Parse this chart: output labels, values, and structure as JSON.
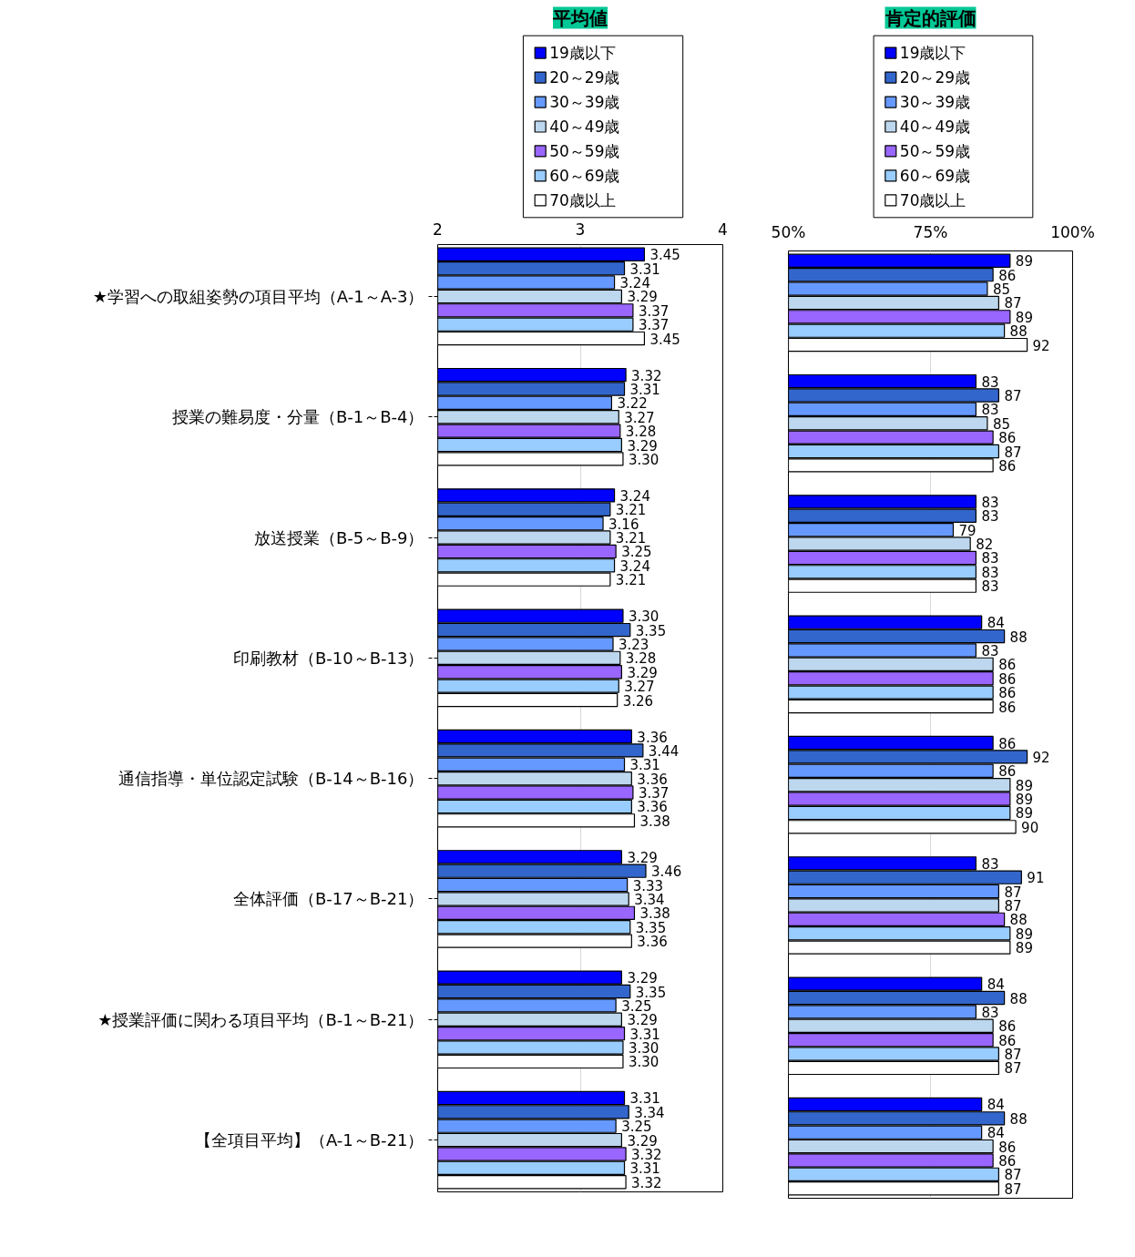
{
  "chart_data": [
    {
      "type": "bar",
      "orientation": "horizontal",
      "title": "平均値",
      "legend": "top",
      "grid": "x",
      "xlim": [
        2,
        4
      ],
      "xticks": [
        2,
        3,
        4
      ],
      "categories": [
        "★学習への取組姿勢の項目平均（A-1～A-3）",
        "授業の難易度・分量（B-1～B-4）",
        "放送授業（B-5～B-9）",
        "印刷教材（B-10～B-13）",
        "通信指導・単位認定試験（B-14～B-16）",
        "全体評価（B-17～B-21）",
        "★授業評価に関わる項目平均（B-1～B-21）",
        "【全項目平均】（A-1～B-21）"
      ],
      "series": [
        {
          "name": "19歳以下",
          "color": "#0000ff",
          "values": [
            3.45,
            3.32,
            3.24,
            3.3,
            3.36,
            3.29,
            3.29,
            3.31
          ],
          "value_labels": [
            "3.45",
            "3.32",
            "3.24",
            "3.30",
            "3.36",
            "3.29",
            "3.29",
            "3.31"
          ]
        },
        {
          "name": "20～29歳",
          "color": "#3366cc",
          "values": [
            3.31,
            3.31,
            3.21,
            3.35,
            3.44,
            3.46,
            3.35,
            3.34
          ],
          "value_labels": [
            "3.31",
            "3.31",
            "3.21",
            "3.35",
            "3.44",
            "3.46",
            "3.35",
            "3.34"
          ]
        },
        {
          "name": "30～39歳",
          "color": "#6699ff",
          "values": [
            3.24,
            3.22,
            3.16,
            3.23,
            3.31,
            3.33,
            3.25,
            3.25
          ],
          "value_labels": [
            "3.24",
            "3.22",
            "3.16",
            "3.23",
            "3.31",
            "3.33",
            "3.25",
            "3.25"
          ]
        },
        {
          "name": "40～49歳",
          "color": "#bdd7ee",
          "values": [
            3.29,
            3.27,
            3.21,
            3.28,
            3.36,
            3.34,
            3.29,
            3.29
          ],
          "value_labels": [
            "3.29",
            "3.27",
            "3.21",
            "3.28",
            "3.36",
            "3.34",
            "3.29",
            "3.29"
          ]
        },
        {
          "name": "50～59歳",
          "color": "#9966ff",
          "values": [
            3.37,
            3.28,
            3.25,
            3.29,
            3.37,
            3.38,
            3.31,
            3.32
          ],
          "value_labels": [
            "3.37",
            "3.28",
            "3.25",
            "3.29",
            "3.37",
            "3.38",
            "3.31",
            "3.32"
          ]
        },
        {
          "name": "60～69歳",
          "color": "#99ccff",
          "values": [
            3.37,
            3.29,
            3.24,
            3.27,
            3.36,
            3.35,
            3.3,
            3.31
          ],
          "value_labels": [
            "3.37",
            "3.29",
            "3.24",
            "3.27",
            "3.36",
            "3.35",
            "3.30",
            "3.31"
          ]
        },
        {
          "name": "70歳以上",
          "color": "#ffffff",
          "values": [
            3.45,
            3.3,
            3.21,
            3.26,
            3.38,
            3.36,
            3.3,
            3.32
          ],
          "value_labels": [
            "3.45",
            "3.30",
            "3.21",
            "3.26",
            "3.38",
            "3.36",
            "3.30",
            "3.32"
          ]
        }
      ]
    },
    {
      "type": "bar",
      "orientation": "horizontal",
      "title": "肯定的評価",
      "legend": "top",
      "grid": "x",
      "tick_labels": "x",
      "data_labels": true,
      "xlim": [
        50,
        100
      ],
      "xticks": [
        {
          "value": 50,
          "label": "50%"
        },
        {
          "value": 75,
          "label": "75%"
        },
        {
          "value": 100,
          "label": "100%"
        }
      ],
      "categories": [
        null,
        null,
        null,
        null,
        null,
        null,
        null,
        null
      ],
      "series": [
        {
          "name": "19歳以下",
          "color": "#0000ff",
          "values": [
            89,
            83,
            83,
            84,
            86,
            83,
            84,
            84
          ]
        },
        {
          "name": "20～29歳",
          "color": "#3366cc",
          "values": [
            86,
            87,
            83,
            88,
            92,
            91,
            88,
            88
          ]
        },
        {
          "name": "30～39歳",
          "color": "#6699ff",
          "values": [
            85,
            83,
            79,
            83,
            86,
            87,
            83,
            84
          ]
        },
        {
          "name": "40～49歳",
          "color": "#bdd7ee",
          "values": [
            87,
            85,
            82,
            86,
            89,
            87,
            86,
            86
          ]
        },
        {
          "name": "50～59歳",
          "color": "#9966ff",
          "values": [
            89,
            86,
            83,
            86,
            89,
            88,
            86,
            86
          ]
        },
        {
          "name": "60～69歳",
          "color": "#99ccff",
          "values": [
            88,
            87,
            83,
            86,
            89,
            89,
            87,
            87
          ]
        },
        {
          "name": "70歳以上",
          "color": "#ffffff",
          "values": [
            92,
            86,
            83,
            86,
            90,
            89,
            87,
            87
          ]
        }
      ]
    }
  ]
}
